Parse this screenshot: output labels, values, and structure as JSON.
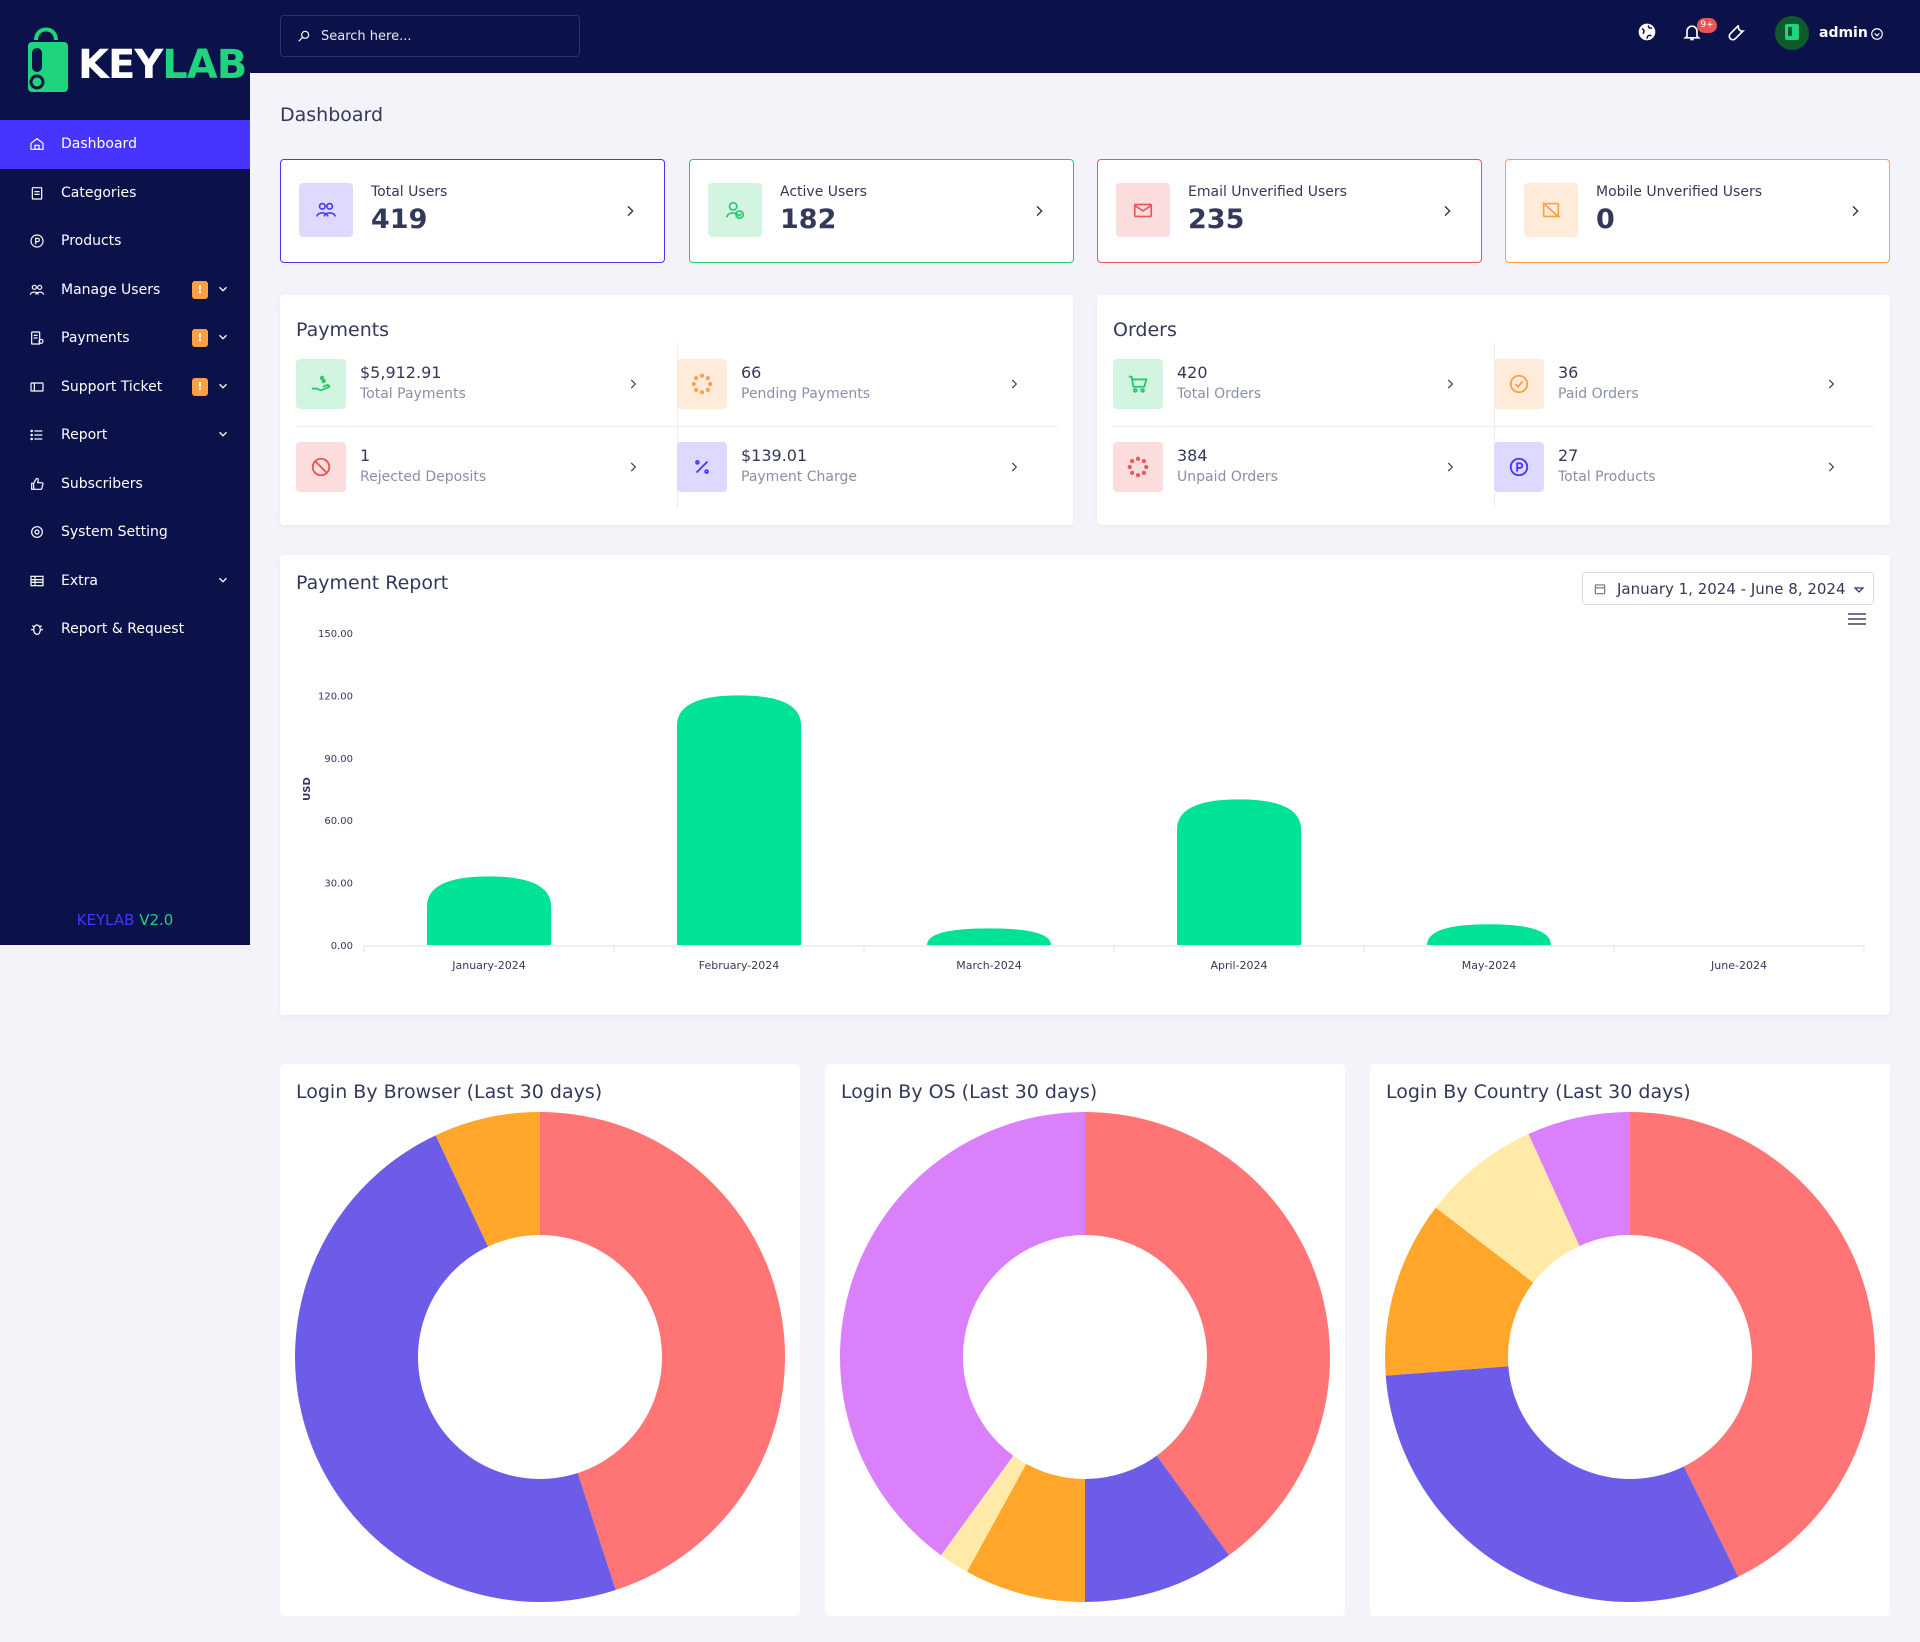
{
  "brand": {
    "logo_key": "KEY",
    "logo_lab": "LAB",
    "version_name": "KEYLAB",
    "version_num": "V2.0"
  },
  "sidebar": {
    "items": [
      {
        "label": "Dashboard",
        "icon": "home-icon",
        "active": true,
        "warn": false,
        "chevron": false
      },
      {
        "label": "Categories",
        "icon": "clipboard-icon",
        "active": false,
        "warn": false,
        "chevron": false
      },
      {
        "label": "Products",
        "icon": "product-circle-icon",
        "active": false,
        "warn": false,
        "chevron": false
      },
      {
        "label": "Manage Users",
        "icon": "users-icon",
        "active": false,
        "warn": true,
        "chevron": true
      },
      {
        "label": "Payments",
        "icon": "payments-icon",
        "active": false,
        "warn": true,
        "chevron": true
      },
      {
        "label": "Support Ticket",
        "icon": "ticket-icon",
        "active": false,
        "warn": true,
        "chevron": true
      },
      {
        "label": "Report",
        "icon": "list-icon",
        "active": false,
        "warn": false,
        "chevron": true
      },
      {
        "label": "Subscribers",
        "icon": "thumbs-up-icon",
        "active": false,
        "warn": false,
        "chevron": false
      },
      {
        "label": "System Setting",
        "icon": "settings-icon",
        "active": false,
        "warn": false,
        "chevron": false
      },
      {
        "label": "Extra",
        "icon": "table-icon",
        "active": false,
        "warn": false,
        "chevron": true
      },
      {
        "label": "Report & Request",
        "icon": "bug-icon",
        "active": false,
        "warn": false,
        "chevron": false
      }
    ],
    "warn_mark": "!"
  },
  "topbar": {
    "search_placeholder": "Search here...",
    "notification_badge": "9+",
    "username": "admin"
  },
  "page": {
    "title": "Dashboard"
  },
  "stats": [
    {
      "label": "Total Users",
      "value": "419",
      "color": "#4634ff",
      "bg": "#ddd9ff",
      "icon": "users-icon"
    },
    {
      "label": "Active Users",
      "value": "182",
      "color": "#28c76f",
      "bg": "#d4f4e2",
      "icon": "user-check-icon"
    },
    {
      "label": "Email Unverified Users",
      "value": "235",
      "color": "#ea5455",
      "bg": "#fbdddd",
      "icon": "envelope-icon"
    },
    {
      "label": "Mobile Unverified Users",
      "value": "0",
      "color": "#ff9f43",
      "bg": "#ffebd9",
      "icon": "mobile-slash-icon"
    }
  ],
  "payments": {
    "title": "Payments",
    "items": [
      {
        "value": "$5,912.91",
        "label": "Total Payments",
        "color": "#28c76f",
        "bg": "#d4f4e2",
        "icon": "hand-dollar-icon"
      },
      {
        "value": "66",
        "label": "Pending Payments",
        "color": "#ff9f43",
        "bg": "#ffebd9",
        "icon": "spinner-icon"
      },
      {
        "value": "1",
        "label": "Rejected Deposits",
        "color": "#ea5455",
        "bg": "#fbdddd",
        "icon": "ban-icon"
      },
      {
        "value": "$139.01",
        "label": "Payment Charge",
        "color": "#4634ff",
        "bg": "#ddd9ff",
        "icon": "percent-icon"
      }
    ]
  },
  "orders": {
    "title": "Orders",
    "items": [
      {
        "value": "420",
        "label": "Total Orders",
        "color": "#28c76f",
        "bg": "#d4f4e2",
        "icon": "cart-icon"
      },
      {
        "value": "36",
        "label": "Paid Orders",
        "color": "#ff9f43",
        "bg": "#ffebd9",
        "icon": "check-circle-icon"
      },
      {
        "value": "384",
        "label": "Unpaid Orders",
        "color": "#ea5455",
        "bg": "#fbdddd",
        "icon": "spinner-icon"
      },
      {
        "value": "27",
        "label": "Total Products",
        "color": "#4634ff",
        "bg": "#ddd9ff",
        "icon": "product-circle-icon"
      }
    ]
  },
  "payment_report": {
    "title": "Payment Report",
    "date_range": "January 1, 2024 - June 8, 2024"
  },
  "chart_data": [
    {
      "type": "bar",
      "title": "Payment Report",
      "ylabel": "USD",
      "xlabel": "",
      "categories": [
        "January-2024",
        "February-2024",
        "March-2024",
        "April-2024",
        "May-2024",
        "June-2024"
      ],
      "values": [
        33,
        120,
        8,
        70,
        10,
        0
      ],
      "ylim": [
        0,
        150
      ],
      "yticks": [
        "0.00",
        "30.00",
        "60.00",
        "90.00",
        "120.00",
        "150.00"
      ],
      "color": "#00e396",
      "grid": false
    },
    {
      "type": "pie",
      "title": "Login By Browser (Last 30 days)",
      "values": [
        45,
        48,
        7
      ],
      "colors": [
        "#ff7474",
        "#6c5ce7",
        "#ffa62b"
      ]
    },
    {
      "type": "pie",
      "title": "Login By OS (Last 30 days)",
      "values": [
        40,
        10,
        8,
        2,
        40
      ],
      "colors": [
        "#ff7474",
        "#6c5ce7",
        "#ffa62b",
        "#ffeaa7",
        "#d980fa"
      ]
    },
    {
      "type": "pie",
      "title": "Login By Country (Last 30 days)",
      "values": [
        44,
        32,
        12,
        8,
        7
      ],
      "colors": [
        "#ff7474",
        "#6c5ce7",
        "#ffa62b",
        "#ffeaa7",
        "#d980fa"
      ]
    }
  ]
}
